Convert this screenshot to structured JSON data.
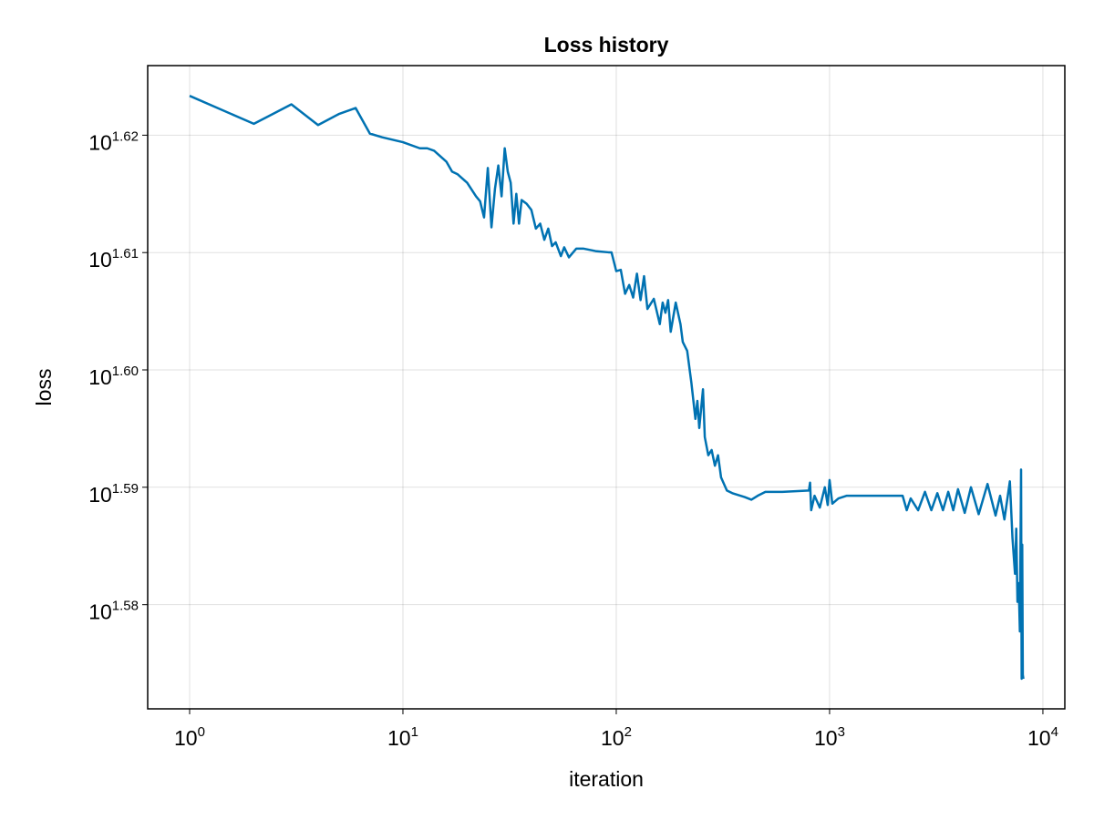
{
  "chart_data": {
    "type": "line",
    "title": "Loss history",
    "xlabel": "iteration",
    "ylabel": "loss",
    "xscale": "log",
    "yscale": "log",
    "grid": true,
    "color": "#0072b2",
    "xlim": [
      0.636,
      12670
    ],
    "ylim": [
      37.25,
      42.26
    ],
    "xticks": [
      {
        "value": 1,
        "label": "10",
        "exponent": "0"
      },
      {
        "value": 10,
        "label": "10",
        "exponent": "1"
      },
      {
        "value": 100,
        "label": "10",
        "exponent": "2"
      },
      {
        "value": 1000,
        "label": "10",
        "exponent": "3"
      },
      {
        "value": 10000,
        "label": "10",
        "exponent": "4"
      }
    ],
    "yticks": [
      {
        "value": 38.019,
        "label": "10",
        "exponent": "1.58"
      },
      {
        "value": 38.905,
        "label": "10",
        "exponent": "1.59"
      },
      {
        "value": 39.811,
        "label": "10",
        "exponent": "1.60"
      },
      {
        "value": 40.738,
        "label": "10",
        "exponent": "1.61"
      },
      {
        "value": 41.687,
        "label": "10",
        "exponent": "1.62"
      }
    ],
    "x": [
      1,
      2,
      3,
      4,
      5,
      6,
      7,
      8,
      10,
      12,
      13,
      14,
      16,
      17,
      18,
      20,
      22,
      23,
      24,
      25,
      26,
      27,
      28,
      29,
      30,
      31,
      32,
      33,
      34,
      35,
      36,
      38,
      40,
      42,
      44,
      46,
      48,
      50,
      52,
      55,
      57,
      60,
      65,
      70,
      80,
      92,
      95,
      100,
      105,
      110,
      115,
      120,
      125,
      130,
      135,
      140,
      150,
      160,
      165,
      170,
      175,
      180,
      190,
      200,
      205,
      215,
      225,
      235,
      240,
      245,
      255,
      260,
      270,
      280,
      290,
      300,
      310,
      330,
      350,
      400,
      430,
      460,
      500,
      600,
      800,
      810,
      820,
      850,
      900,
      950,
      980,
      1000,
      1030,
      1100,
      1200,
      1500,
      2000,
      2200,
      2300,
      2400,
      2600,
      2800,
      3000,
      3200,
      3400,
      3600,
      3800,
      4000,
      4300,
      4600,
      5000,
      5500,
      6000,
      6300,
      6600,
      7000,
      7200,
      7400,
      7500,
      7600,
      7700,
      7800,
      7900,
      7950,
      8000,
      8050,
      8100
    ],
    "values": [
      42.01,
      41.78,
      41.94,
      41.77,
      41.86,
      41.91,
      41.7,
      41.67,
      41.63,
      41.58,
      41.58,
      41.56,
      41.47,
      41.39,
      41.37,
      41.3,
      41.19,
      41.15,
      41.02,
      41.42,
      40.94,
      41.25,
      41.44,
      41.19,
      41.58,
      41.39,
      41.3,
      40.97,
      41.21,
      40.97,
      41.16,
      41.13,
      41.08,
      40.93,
      40.97,
      40.84,
      40.93,
      40.79,
      40.82,
      40.71,
      40.78,
      40.7,
      40.77,
      40.77,
      40.75,
      40.74,
      40.74,
      40.59,
      40.6,
      40.41,
      40.48,
      40.38,
      40.57,
      40.36,
      40.55,
      40.29,
      40.37,
      40.17,
      40.34,
      40.26,
      40.36,
      40.11,
      40.34,
      40.17,
      40.03,
      39.96,
      39.71,
      39.43,
      39.57,
      39.36,
      39.66,
      39.29,
      39.15,
      39.19,
      39.07,
      39.15,
      38.98,
      38.88,
      38.86,
      38.83,
      38.81,
      38.84,
      38.87,
      38.87,
      38.88,
      38.94,
      38.73,
      38.84,
      38.75,
      38.905,
      38.77,
      38.96,
      38.78,
      38.82,
      38.84,
      38.84,
      38.84,
      38.84,
      38.73,
      38.82,
      38.73,
      38.87,
      38.73,
      38.86,
      38.73,
      38.87,
      38.73,
      38.89,
      38.71,
      38.905,
      38.7,
      38.93,
      38.69,
      38.84,
      38.66,
      38.95,
      38.52,
      38.25,
      38.59,
      38.04,
      38.18,
      37.82,
      39.04,
      37.47,
      38.47,
      37.5,
      37.47
    ]
  }
}
